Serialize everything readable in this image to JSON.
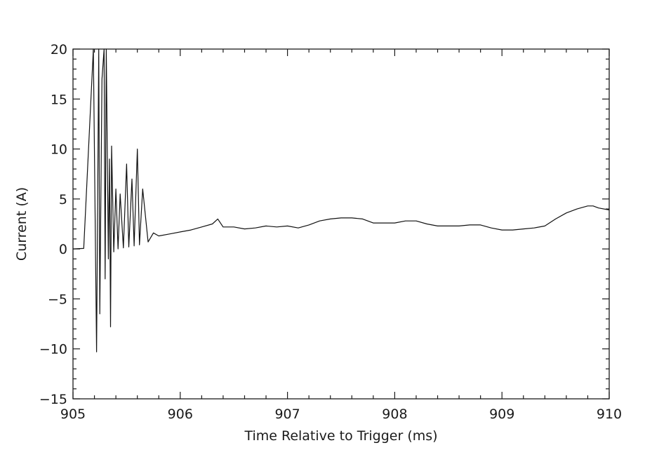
{
  "chart_data": {
    "type": "line",
    "title": "",
    "xlabel": "Time Relative to Trigger (ms)",
    "ylabel": "Current (A)",
    "xlim": [
      905,
      910
    ],
    "ylim": [
      -15,
      20
    ],
    "x_ticks": [
      905,
      906,
      907,
      908,
      909,
      910
    ],
    "x_tick_labels": [
      "905",
      "906",
      "907",
      "908",
      "909",
      "910"
    ],
    "y_ticks": [
      -15,
      -10,
      -5,
      0,
      5,
      10,
      15,
      20
    ],
    "y_tick_labels": [
      "-15",
      "-10",
      "-5",
      "0",
      "5",
      "10",
      "15",
      "20"
    ],
    "grid": false,
    "legend": "none",
    "line_color": "#111111",
    "series": [
      {
        "x": [
          905.0,
          905.1,
          905.19,
          905.22,
          905.24,
          905.25,
          905.27,
          905.29,
          905.3,
          905.31,
          905.33,
          905.34,
          905.35,
          905.36,
          905.38,
          905.4,
          905.42,
          905.44,
          905.47,
          905.5,
          905.52,
          905.55,
          905.57,
          905.6,
          905.62,
          905.65,
          905.7,
          905.75,
          905.8,
          905.9,
          906.0,
          906.1,
          906.2,
          906.3,
          906.35,
          906.4,
          906.5,
          906.6,
          906.7,
          906.8,
          906.9,
          907.0,
          907.1,
          907.2,
          907.3,
          907.4,
          907.5,
          907.6,
          907.7,
          907.8,
          907.9,
          908.0,
          908.1,
          908.2,
          908.3,
          908.4,
          908.5,
          908.6,
          908.7,
          908.8,
          908.9,
          909.0,
          909.1,
          909.2,
          909.3,
          909.4,
          909.5,
          909.6,
          909.7,
          909.8,
          909.85,
          909.9,
          910.0
        ],
        "y": [
          0.0,
          0.05,
          20.0,
          -10.3,
          20.0,
          -6.5,
          17.0,
          20.0,
          -3.0,
          20.0,
          -1.0,
          9.0,
          -7.8,
          10.3,
          -0.3,
          6.0,
          0.0,
          5.5,
          0.1,
          8.5,
          0.2,
          7.0,
          0.3,
          10.0,
          0.4,
          6.0,
          0.7,
          1.6,
          1.3,
          1.5,
          1.7,
          1.9,
          2.2,
          2.5,
          3.0,
          2.2,
          2.2,
          2.0,
          2.1,
          2.3,
          2.2,
          2.3,
          2.1,
          2.4,
          2.8,
          3.0,
          3.1,
          3.1,
          3.0,
          2.6,
          2.6,
          2.6,
          2.8,
          2.8,
          2.5,
          2.3,
          2.3,
          2.3,
          2.4,
          2.4,
          2.1,
          1.9,
          1.9,
          2.0,
          2.1,
          2.3,
          3.0,
          3.6,
          4.0,
          4.3,
          4.3,
          4.1,
          3.9
        ]
      }
    ]
  }
}
